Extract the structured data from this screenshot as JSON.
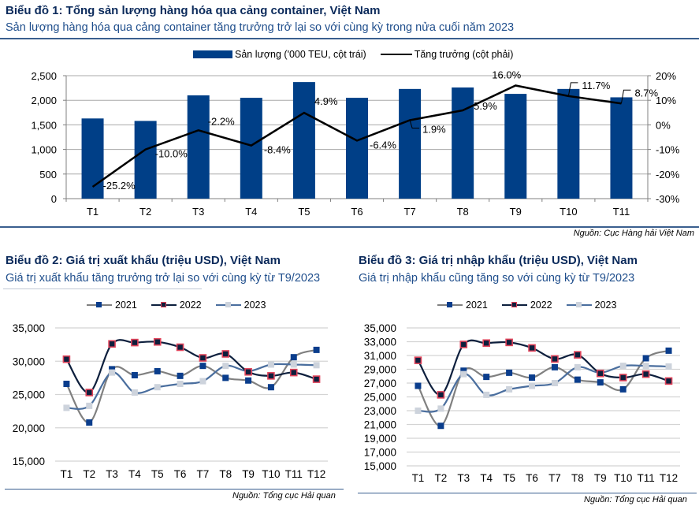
{
  "chart1": {
    "title": "Biểu đồ 1: Tổng sản lượng hàng hóa qua cảng container, Việt Nam",
    "subtitle": "Sản lượng hàng hóa qua cảng container tăng trưởng trở lại so với cùng kỳ trong nửa cuối năm 2023",
    "source": "Nguồn: Cục Hàng hải Việt Nam"
  },
  "chart2": {
    "title": "Biểu đồ 2: Giá trị xuất khẩu (triệu USD), Việt Nam",
    "subtitle": "Giá trị xuất khẩu tăng trưởng trở lại so với cùng kỳ từ T9/2023",
    "source": "Nguồn: Tổng cục Hải quan"
  },
  "chart3": {
    "title": "Biểu đồ 3: Giá trị nhập khẩu (triệu USD), Việt Nam",
    "subtitle": "Giá trị nhập khẩu cũng tăng so với cùng kỳ từ T9/2023",
    "source": "Nguồn: Tổng cục Hải quan"
  },
  "colors": {
    "bar": "#003f87",
    "growth_line": "#000000",
    "s2021_line": "#808080",
    "s2021_marker": "#0a3d8c",
    "s2022_line": "#0d1f3d",
    "s2022_marker_fill": "#0d1f3d",
    "s2022_marker_border": "#e0435a",
    "s2023_line": "#4a6e9e",
    "s2023_marker": "#cdd3dc",
    "grid": "#c8c8c8",
    "rule": "#3a5f8f"
  },
  "chart_data": [
    {
      "type": "bar",
      "title": "Biểu đồ 1: Tổng sản lượng hàng hóa qua cảng container, Việt Nam",
      "categories": [
        "T1",
        "T2",
        "T3",
        "T4",
        "T5",
        "T6",
        "T7",
        "T8",
        "T9",
        "T10",
        "T11"
      ],
      "series": [
        {
          "name": "Sản lượng ('000 TEU, cột trái)",
          "type": "bar",
          "axis": "left",
          "values": [
            1630,
            1580,
            2100,
            2050,
            2370,
            2050,
            2230,
            2260,
            2130,
            2230,
            2060
          ]
        },
        {
          "name": "Tăng trưởng (cột phải)",
          "type": "line",
          "axis": "right",
          "values": [
            -25.2,
            -10.0,
            -2.2,
            -8.4,
            4.9,
            -6.4,
            1.9,
            5.9,
            16.0,
            11.7,
            8.7
          ],
          "labels": [
            "-25.2%",
            "-10.0%",
            "-2.2%",
            "-8.4%",
            "4.9%",
            "-6.4%",
            "1.9%",
            "5.9%",
            "16.0%",
            "11.7%",
            "8.7%"
          ]
        }
      ],
      "ylim_left": [
        0,
        2500
      ],
      "yticks_left": [
        "0",
        "500",
        "1,000",
        "1,500",
        "2,000",
        "2,500"
      ],
      "ylim_right": [
        -30,
        20
      ],
      "yticks_right": [
        "-30%",
        "-20%",
        "-10%",
        "0%",
        "10%",
        "20%"
      ],
      "grid": true,
      "legend": "top-center",
      "xlabel": "",
      "ylabel": ""
    },
    {
      "type": "line",
      "title": "Biểu đồ 2: Giá trị xuất khẩu (triệu USD), Việt Nam",
      "categories": [
        "T1",
        "T2",
        "T3",
        "T4",
        "T5",
        "T6",
        "T7",
        "T8",
        "T9",
        "T10",
        "T11",
        "T12"
      ],
      "series": [
        {
          "name": "2021",
          "values": [
            26600,
            20800,
            28800,
            27900,
            28500,
            27800,
            29300,
            27500,
            27100,
            26100,
            30600,
            31700
          ]
        },
        {
          "name": "2022",
          "values": [
            30300,
            25300,
            32600,
            32800,
            32900,
            32100,
            30500,
            31100,
            28400,
            27800,
            28300,
            27300
          ]
        },
        {
          "name": "2023",
          "values": [
            23000,
            23300,
            28300,
            25300,
            26100,
            26600,
            27000,
            29300,
            28500,
            29500,
            29500,
            29400
          ]
        }
      ],
      "ylim": [
        15000,
        35000
      ],
      "yticks": [
        "15,000",
        "20,000",
        "25,000",
        "30,000",
        "35,000"
      ],
      "grid": true,
      "legend": "top-center",
      "xlabel": "",
      "ylabel": ""
    },
    {
      "type": "line",
      "title": "Biểu đồ 3: Giá trị nhập khẩu (triệu USD), Việt Nam",
      "categories": [
        "T1",
        "T2",
        "T3",
        "T4",
        "T5",
        "T6",
        "T7",
        "T8",
        "T9",
        "T10",
        "T11",
        "T12"
      ],
      "series": [
        {
          "name": "2021",
          "values": [
            26600,
            20800,
            28800,
            27900,
            28500,
            27800,
            29300,
            27500,
            27100,
            26100,
            30600,
            31700
          ]
        },
        {
          "name": "2022",
          "values": [
            30300,
            25300,
            32600,
            32800,
            32900,
            32100,
            30500,
            31100,
            28400,
            27800,
            28300,
            27300
          ]
        },
        {
          "name": "2023",
          "values": [
            23000,
            23300,
            28300,
            25300,
            26100,
            26600,
            27000,
            29300,
            28500,
            29500,
            29500,
            29400
          ]
        }
      ],
      "ylim": [
        15000,
        35000
      ],
      "yticks": [
        "15,000",
        "17,000",
        "19,000",
        "21,000",
        "23,000",
        "25,000",
        "27,000",
        "29,000",
        "31,000",
        "33,000",
        "35,000"
      ],
      "grid": true,
      "legend": "top-center",
      "xlabel": "",
      "ylabel": ""
    }
  ]
}
